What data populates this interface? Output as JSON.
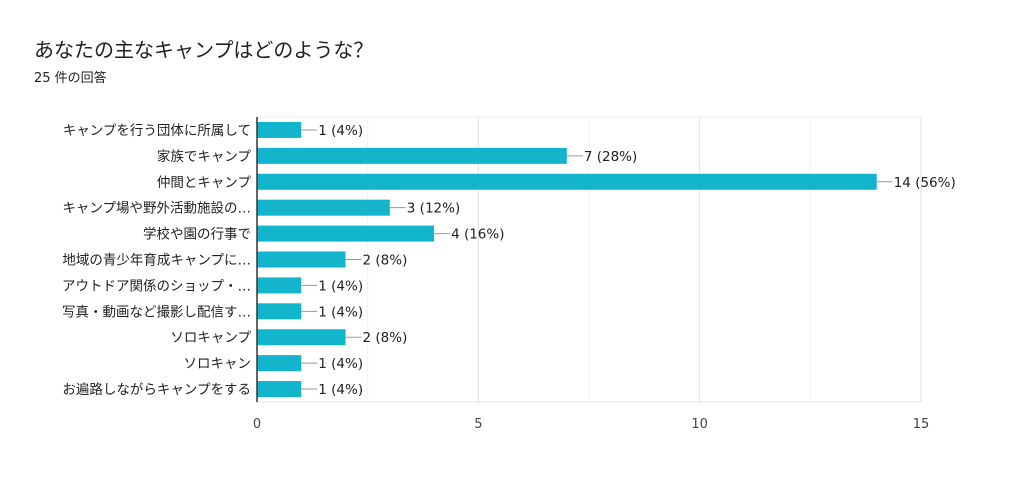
{
  "chart_data": {
    "type": "bar",
    "orientation": "horizontal",
    "title": "あなたの主なキャンプはどのような？",
    "subtitle": "25 件の回答",
    "categories": [
      "キャンプを行う団体に所属して",
      "家族でキャンプ",
      "仲間とキャンプ",
      "キャンプ場や野外活動施設の…",
      "学校や園の行事で",
      "地域の青少年育成キャンプに…",
      "アウトドア関係のショップ・…",
      "写真・動画など撮影し配信す…",
      "ソロキャンプ",
      "ソロキャン",
      "お遍路しながらキャンプをする"
    ],
    "values": [
      1,
      7,
      14,
      3,
      4,
      2,
      1,
      1,
      2,
      1,
      1
    ],
    "data_labels": [
      "1 (4%)",
      "7 (28%)",
      "14 (56%)",
      "3 (12%)",
      "4 (16%)",
      "2 (8%)",
      "1 (4%)",
      "1 (4%)",
      "2 (8%)",
      "1 (4%)",
      "1 (4%)"
    ],
    "xlim": [
      0,
      15
    ],
    "xticks": [
      "0",
      "5",
      "10",
      "15"
    ],
    "xlabel": "",
    "ylabel": "",
    "grid": true,
    "bar_color": "#12B5CB"
  }
}
